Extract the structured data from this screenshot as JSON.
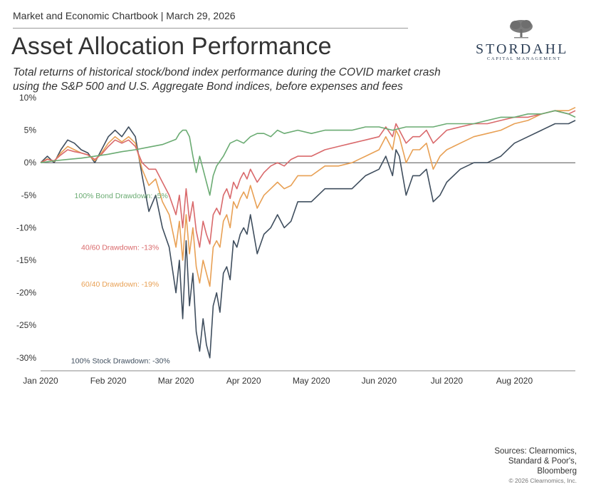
{
  "header": {
    "subheading": "Market and Economic Chartbook | March 29, 2026",
    "title": "Asset Allocation Performance",
    "subtitle": "Total returns of historical stock/bond index performance during the COVID market crash using the S&P 500 and U.S. Aggregate Bond indices, before expenses and fees"
  },
  "logo": {
    "name": "STORDAHL",
    "tagline": "CAPITAL MANAGEMENT",
    "icon": "tree-icon"
  },
  "footer": {
    "sources_line1": "Sources: Clearnomics,",
    "sources_line2": "Standard & Poor's,",
    "sources_line3": "Bloomberg",
    "copyright": "© 2026 Clearnomics, Inc."
  },
  "colors": {
    "bond": "#6aab72",
    "s4060": "#d9696b",
    "s6040": "#e8a054",
    "stock": "#3f4e5e",
    "axis": "#888888",
    "zero": "#555555"
  },
  "chart_data": {
    "type": "line",
    "title": "Asset Allocation Performance",
    "xlabel": "",
    "ylabel": "",
    "x_range": [
      0,
      7.9
    ],
    "ylim": [
      -32,
      10
    ],
    "y_ticks": [
      10,
      5,
      0,
      -5,
      -10,
      -15,
      -20,
      -25,
      -30
    ],
    "y_tick_labels": [
      "10%",
      "5%",
      "0%",
      "-5%",
      "-10%",
      "-15%",
      "-20%",
      "-25%",
      "-30%"
    ],
    "x_ticks": [
      0,
      1,
      2,
      3,
      4,
      5,
      6,
      7
    ],
    "x_tick_labels": [
      "Jan 2020",
      "Feb 2020",
      "Mar 2020",
      "Apr 2020",
      "May 2020",
      "Jun 2020",
      "Jul 2020",
      "Aug 2020"
    ],
    "annotations": [
      {
        "series": "bond",
        "text": "100% Bond Drawdown: -5%",
        "x": 0.5,
        "y": -5
      },
      {
        "series": "s4060",
        "text": "40/60 Drawdown: -13%",
        "x": 0.6,
        "y": -13
      },
      {
        "series": "s6040",
        "text": "60/40 Drawdown: -19%",
        "x": 0.6,
        "y": -18.6
      },
      {
        "series": "stock",
        "text": "100% Stock Drawdown: -30%",
        "x": 0.45,
        "y": -30.4
      }
    ],
    "series": [
      {
        "key": "stock",
        "name": "100% Stock",
        "x": [
          0,
          0.1,
          0.2,
          0.3,
          0.4,
          0.5,
          0.6,
          0.7,
          0.8,
          0.9,
          1.0,
          1.1,
          1.2,
          1.3,
          1.4,
          1.5,
          1.6,
          1.7,
          1.8,
          1.9,
          2.0,
          2.05,
          2.1,
          2.15,
          2.2,
          2.25,
          2.3,
          2.35,
          2.4,
          2.45,
          2.5,
          2.55,
          2.6,
          2.65,
          2.7,
          2.75,
          2.8,
          2.85,
          2.9,
          2.95,
          3.0,
          3.05,
          3.1,
          3.2,
          3.3,
          3.4,
          3.5,
          3.6,
          3.7,
          3.8,
          3.9,
          4.0,
          4.2,
          4.4,
          4.6,
          4.8,
          5.0,
          5.1,
          5.2,
          5.25,
          5.3,
          5.4,
          5.5,
          5.6,
          5.7,
          5.8,
          5.9,
          6.0,
          6.2,
          6.4,
          6.6,
          6.8,
          7.0,
          7.2,
          7.4,
          7.6,
          7.8,
          7.9
        ],
        "y": [
          0,
          1,
          0,
          2,
          3.5,
          3,
          2,
          1.5,
          0,
          2,
          4,
          5,
          4,
          5.5,
          4,
          -2,
          -7.5,
          -5,
          -10,
          -13,
          -20,
          -15,
          -24,
          -12,
          -22,
          -17,
          -26,
          -29,
          -24,
          -28,
          -30,
          -22,
          -20,
          -23,
          -17,
          -16,
          -18,
          -12,
          -13,
          -11,
          -10,
          -11,
          -8,
          -14,
          -11,
          -10,
          -8,
          -10,
          -9,
          -6,
          -6,
          -6,
          -4,
          -4,
          -4,
          -2,
          -1,
          1,
          -2,
          2,
          1,
          -5,
          -2,
          -2,
          -1,
          -6,
          -5,
          -3,
          -1,
          0,
          0,
          1,
          3,
          4,
          5,
          6,
          6,
          6.5
        ]
      },
      {
        "key": "s6040",
        "name": "60/40",
        "x": [
          0,
          0.1,
          0.2,
          0.3,
          0.4,
          0.5,
          0.6,
          0.7,
          0.8,
          0.9,
          1.0,
          1.1,
          1.2,
          1.3,
          1.4,
          1.5,
          1.6,
          1.7,
          1.8,
          1.9,
          2.0,
          2.05,
          2.1,
          2.15,
          2.2,
          2.25,
          2.3,
          2.35,
          2.4,
          2.45,
          2.5,
          2.55,
          2.6,
          2.65,
          2.7,
          2.75,
          2.8,
          2.85,
          2.9,
          2.95,
          3.0,
          3.05,
          3.1,
          3.2,
          3.3,
          3.4,
          3.5,
          3.6,
          3.7,
          3.8,
          3.9,
          4.0,
          4.2,
          4.4,
          4.6,
          4.8,
          5.0,
          5.1,
          5.2,
          5.25,
          5.3,
          5.4,
          5.5,
          5.6,
          5.7,
          5.8,
          5.9,
          6.0,
          6.2,
          6.4,
          6.6,
          6.8,
          7.0,
          7.2,
          7.4,
          7.6,
          7.8,
          7.9
        ],
        "y": [
          0,
          0.6,
          0.2,
          1.5,
          2.5,
          2,
          1.5,
          1.2,
          0.3,
          1.5,
          3,
          4,
          3.2,
          4,
          3,
          -1,
          -3.5,
          -2.5,
          -6,
          -8,
          -13,
          -9,
          -15,
          -8,
          -14,
          -10,
          -16,
          -18.5,
          -15,
          -17,
          -19,
          -13,
          -12,
          -13,
          -9,
          -8,
          -10,
          -6,
          -7,
          -5.5,
          -4.5,
          -5.5,
          -3.5,
          -7,
          -5,
          -4,
          -3,
          -4,
          -3.5,
          -2,
          -2,
          -2,
          -0.5,
          -0.5,
          0,
          1,
          2,
          4,
          2,
          5,
          4,
          0,
          2,
          2,
          3,
          -1,
          1,
          2,
          3,
          4,
          4.5,
          5,
          6,
          6.5,
          7.5,
          8,
          8,
          8.5
        ]
      },
      {
        "key": "s4060",
        "name": "40/60",
        "x": [
          0,
          0.1,
          0.2,
          0.3,
          0.4,
          0.5,
          0.6,
          0.7,
          0.8,
          0.9,
          1.0,
          1.1,
          1.2,
          1.3,
          1.4,
          1.5,
          1.6,
          1.7,
          1.8,
          1.9,
          2.0,
          2.05,
          2.1,
          2.15,
          2.2,
          2.25,
          2.3,
          2.35,
          2.4,
          2.45,
          2.5,
          2.55,
          2.6,
          2.65,
          2.7,
          2.75,
          2.8,
          2.85,
          2.9,
          2.95,
          3.0,
          3.05,
          3.1,
          3.2,
          3.3,
          3.4,
          3.5,
          3.6,
          3.7,
          3.8,
          3.9,
          4.0,
          4.2,
          4.4,
          4.6,
          4.8,
          5.0,
          5.1,
          5.2,
          5.25,
          5.3,
          5.4,
          5.5,
          5.6,
          5.7,
          5.8,
          5.9,
          6.0,
          6.2,
          6.4,
          6.6,
          6.8,
          7.0,
          7.2,
          7.4,
          7.6,
          7.8,
          7.9
        ],
        "y": [
          0,
          0.5,
          0.3,
          1.2,
          2,
          1.7,
          1.5,
          1.2,
          0.5,
          1.3,
          2.5,
          3.5,
          3,
          3.5,
          2.5,
          0,
          -1,
          -1,
          -3,
          -5,
          -8,
          -5,
          -10,
          -4,
          -9,
          -6,
          -10.5,
          -13,
          -9,
          -11,
          -12.5,
          -8,
          -7,
          -8,
          -5,
          -4,
          -5.5,
          -3,
          -4,
          -2.5,
          -1.5,
          -2.5,
          -1,
          -3,
          -1.5,
          -0.5,
          0,
          -0.5,
          0.5,
          1,
          1,
          1,
          2,
          2.5,
          3,
          3.5,
          4,
          5.5,
          4,
          6,
          5,
          3,
          4,
          4,
          5,
          3,
          4,
          5,
          5.5,
          6,
          6,
          6.5,
          7,
          7,
          7.5,
          8,
          7.5,
          8
        ]
      },
      {
        "key": "bond",
        "name": "100% Bond",
        "x": [
          0,
          0.2,
          0.4,
          0.6,
          0.8,
          1.0,
          1.2,
          1.4,
          1.6,
          1.8,
          2.0,
          2.05,
          2.1,
          2.15,
          2.2,
          2.25,
          2.3,
          2.35,
          2.4,
          2.45,
          2.5,
          2.55,
          2.6,
          2.7,
          2.8,
          2.9,
          3.0,
          3.1,
          3.2,
          3.3,
          3.4,
          3.5,
          3.6,
          3.8,
          4.0,
          4.2,
          4.4,
          4.6,
          4.8,
          5.0,
          5.2,
          5.4,
          5.6,
          5.8,
          6.0,
          6.2,
          6.4,
          6.6,
          6.8,
          7.0,
          7.2,
          7.4,
          7.6,
          7.8,
          7.9
        ],
        "y": [
          0,
          0.3,
          0.5,
          0.7,
          1,
          1.3,
          1.7,
          2,
          2.4,
          2.8,
          3.6,
          4.5,
          5,
          5,
          4,
          1,
          -1.5,
          1,
          -1,
          -3,
          -5,
          -2,
          -0.5,
          1,
          3,
          3.5,
          3,
          4,
          4.5,
          4.5,
          4,
          5,
          4.5,
          5,
          4.5,
          5,
          5,
          5,
          5.5,
          5.5,
          5,
          5.5,
          5.5,
          5.5,
          6,
          6,
          6,
          6.5,
          7,
          7,
          7.5,
          7.5,
          8,
          7.5,
          7
        ]
      }
    ]
  }
}
